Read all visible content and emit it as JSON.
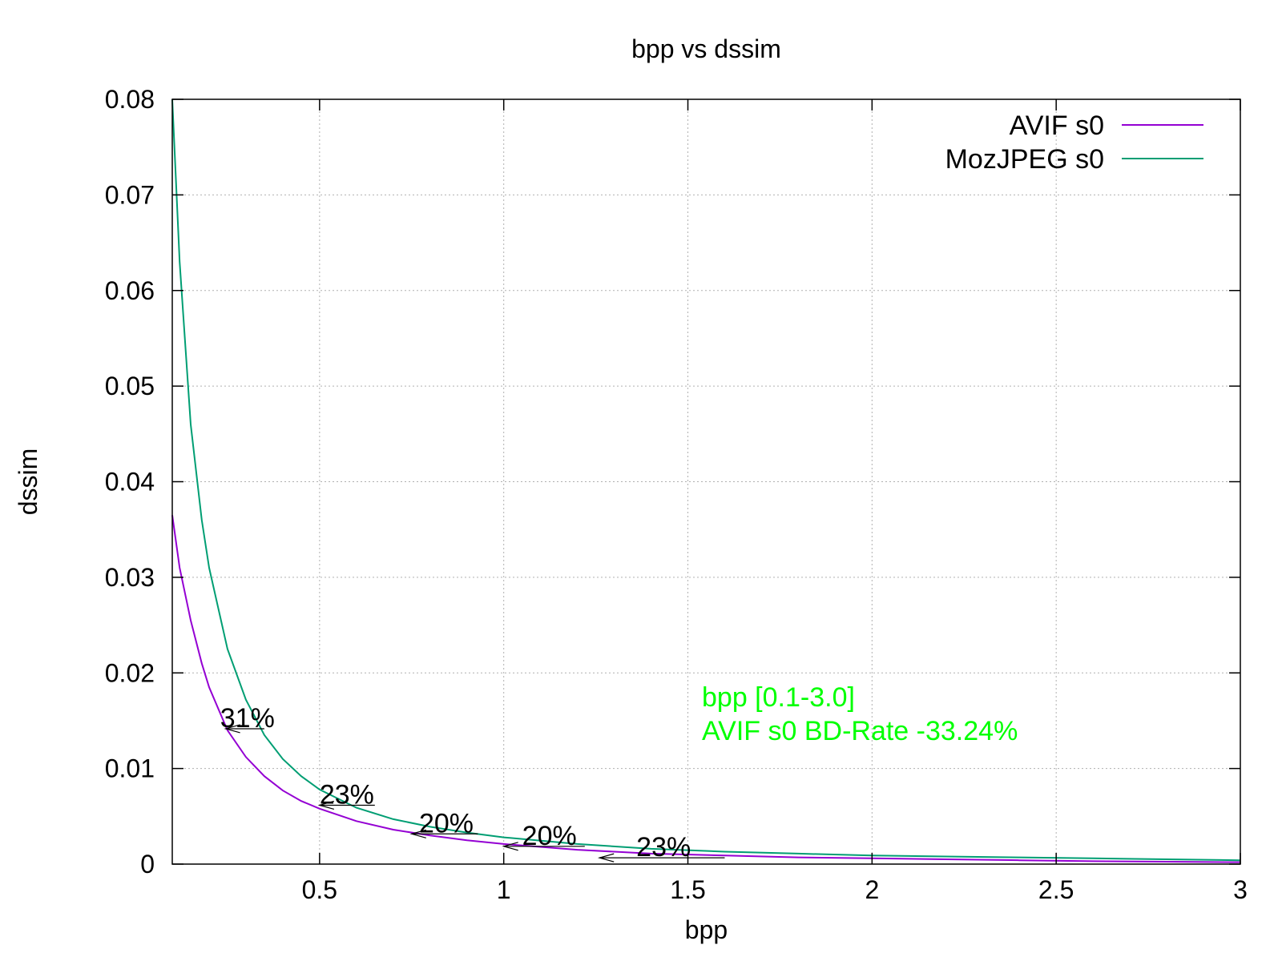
{
  "chart_data": {
    "type": "line",
    "title": "bpp vs dssim",
    "xlabel": "bpp",
    "ylabel": "dssim",
    "xlim": [
      0.1,
      3
    ],
    "ylim": [
      0,
      0.08
    ],
    "xticks": [
      0.5,
      1,
      1.5,
      2,
      2.5,
      3
    ],
    "yticks": [
      0,
      0.01,
      0.02,
      0.03,
      0.04,
      0.05,
      0.06,
      0.07,
      0.08
    ],
    "xtick_labels": [
      "0.5",
      "1",
      "1.5",
      "2",
      "2.5",
      "3"
    ],
    "ytick_labels": [
      "0",
      "0.01",
      "0.02",
      "0.03",
      "0.04",
      "0.05",
      "0.06",
      "0.07",
      "0.08"
    ],
    "grid": true,
    "legend_position": "top-right",
    "series": [
      {
        "name": "AVIF s0",
        "color": "#9400d3",
        "x": [
          0.1,
          0.12,
          0.15,
          0.18,
          0.2,
          0.25,
          0.3,
          0.35,
          0.4,
          0.45,
          0.5,
          0.6,
          0.7,
          0.8,
          0.9,
          1.0,
          1.2,
          1.4,
          1.6,
          1.8,
          2.0,
          2.2,
          2.4,
          2.6,
          2.8,
          3.0
        ],
        "y": [
          0.0365,
          0.031,
          0.0255,
          0.021,
          0.0185,
          0.014,
          0.0112,
          0.0092,
          0.0077,
          0.0066,
          0.0058,
          0.0045,
          0.0036,
          0.003,
          0.0025,
          0.0021,
          0.0015,
          0.0011,
          0.0009,
          0.0007,
          0.0006,
          0.0005,
          0.0004,
          0.0003,
          0.00025,
          0.0002
        ]
      },
      {
        "name": "MozJPEG s0",
        "color": "#009e73",
        "x": [
          0.1,
          0.12,
          0.15,
          0.18,
          0.2,
          0.25,
          0.3,
          0.35,
          0.4,
          0.45,
          0.5,
          0.6,
          0.7,
          0.8,
          0.9,
          1.0,
          1.2,
          1.4,
          1.6,
          1.8,
          2.0,
          2.2,
          2.4,
          2.6,
          2.8,
          3.0
        ],
        "y": [
          0.08,
          0.063,
          0.046,
          0.036,
          0.031,
          0.0225,
          0.0172,
          0.0135,
          0.011,
          0.0092,
          0.0078,
          0.0059,
          0.0047,
          0.0039,
          0.0033,
          0.0028,
          0.0021,
          0.0016,
          0.0013,
          0.0011,
          0.0009,
          0.0008,
          0.0007,
          0.0006,
          0.0005,
          0.0004
        ]
      }
    ],
    "annotations": [
      {
        "text": "31%",
        "x": 0.23,
        "y": 0.0155,
        "arrow_from_x": 0.35,
        "arrow_to_x": 0.245
      },
      {
        "text": "23%",
        "x": 0.5,
        "y": 0.0075,
        "arrow_from_x": 0.65,
        "arrow_to_x": 0.5
      },
      {
        "text": "20%",
        "x": 0.77,
        "y": 0.0045,
        "arrow_from_x": 0.93,
        "arrow_to_x": 0.75
      },
      {
        "text": "20%",
        "x": 1.05,
        "y": 0.0032,
        "arrow_from_x": 1.22,
        "arrow_to_x": 1.0
      },
      {
        "text": "23%",
        "x": 1.36,
        "y": 0.002,
        "arrow_from_x": 1.6,
        "arrow_to_x": 1.26
      }
    ],
    "bd_rate_text": {
      "color": "#00ff00",
      "lines": [
        "bpp [0.1-3.0]",
        "AVIF s0 BD-Rate -33.24%"
      ]
    }
  }
}
